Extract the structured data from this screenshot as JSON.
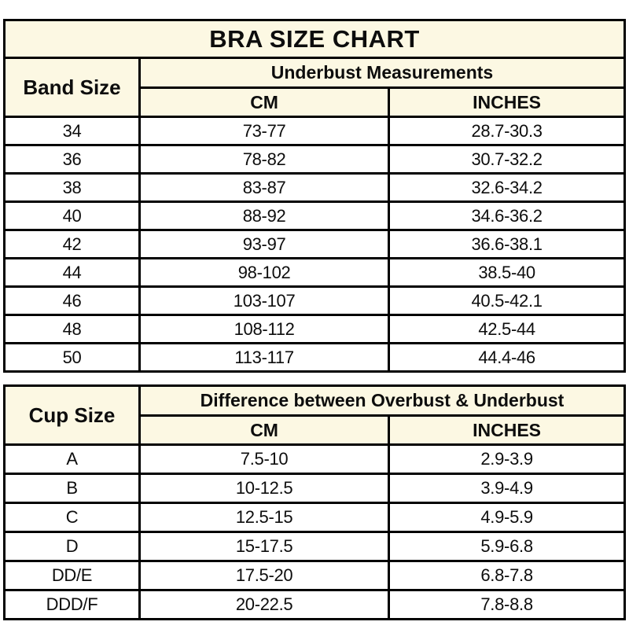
{
  "colors": {
    "header_bg": "#FCF8E3",
    "row_bg": "#FFFFFF",
    "border": "#000000",
    "text": "#0D0D0D"
  },
  "chart_data": [
    {
      "type": "table",
      "title": "BRA SIZE CHART",
      "row_header": "Band Size",
      "group_header": "Underbust Measurements",
      "col_cm": "CM",
      "col_inches": "INCHES",
      "rows": [
        {
          "size": "34",
          "cm": "73-77",
          "inches": "28.7-30.3"
        },
        {
          "size": "36",
          "cm": "78-82",
          "inches": "30.7-32.2"
        },
        {
          "size": "38",
          "cm": "83-87",
          "inches": "32.6-34.2"
        },
        {
          "size": "40",
          "cm": "88-92",
          "inches": "34.6-36.2"
        },
        {
          "size": "42",
          "cm": "93-97",
          "inches": "36.6-38.1"
        },
        {
          "size": "44",
          "cm": "98-102",
          "inches": "38.5-40"
        },
        {
          "size": "46",
          "cm": "103-107",
          "inches": "40.5-42.1"
        },
        {
          "size": "48",
          "cm": "108-112",
          "inches": "42.5-44"
        },
        {
          "size": "50",
          "cm": "113-117",
          "inches": "44.4-46"
        }
      ]
    },
    {
      "type": "table",
      "title": "",
      "row_header": "Cup Size",
      "group_header": "Difference between Overbust & Underbust",
      "col_cm": "CM",
      "col_inches": "INCHES",
      "rows": [
        {
          "size": "A",
          "cm": "7.5-10",
          "inches": "2.9-3.9"
        },
        {
          "size": "B",
          "cm": "10-12.5",
          "inches": "3.9-4.9"
        },
        {
          "size": "C",
          "cm": "12.5-15",
          "inches": "4.9-5.9"
        },
        {
          "size": "D",
          "cm": "15-17.5",
          "inches": "5.9-6.8"
        },
        {
          "size": "DD/E",
          "cm": "17.5-20",
          "inches": "6.8-7.8"
        },
        {
          "size": "DDD/F",
          "cm": "20-22.5",
          "inches": "7.8-8.8"
        }
      ]
    }
  ]
}
